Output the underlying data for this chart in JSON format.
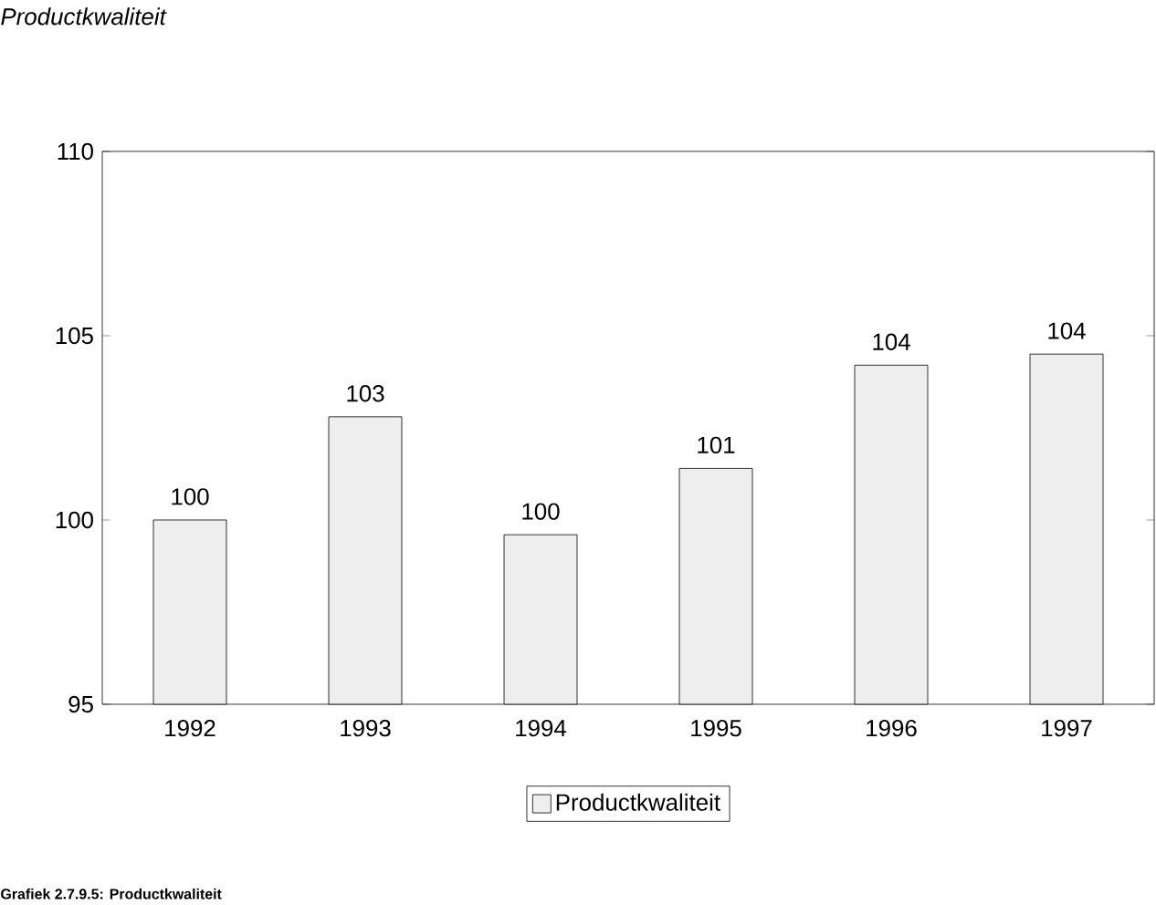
{
  "chart_data": {
    "type": "bar",
    "title": "Productkwaliteit",
    "categories": [
      "1992",
      "1993",
      "1994",
      "1995",
      "1996",
      "1997"
    ],
    "series": [
      {
        "name": "Productkwaliteit",
        "color": "#eeeeee",
        "values": [
          100.0,
          102.8,
          99.6,
          101.4,
          104.2,
          104.5
        ],
        "value_labels": [
          "100",
          "103",
          "100",
          "101",
          "104",
          "104"
        ]
      }
    ],
    "ylim": [
      95,
      110
    ],
    "yticks": [
      95,
      100,
      105,
      110
    ],
    "legend": "bottom",
    "grid": false,
    "annotations": [
      "Grafiek 2.7.9.5: Productkwaliteit"
    ]
  }
}
